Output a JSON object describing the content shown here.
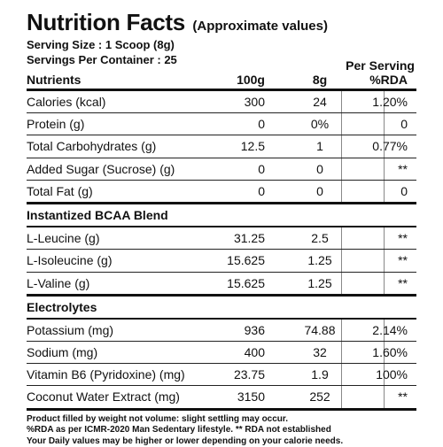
{
  "header": {
    "title": "Nutrition Facts",
    "subtitle": "(Approximate values)",
    "serving_size": "Serving Size : 1 Scoop (8g)",
    "servings_per_container": "Servings Per Container : 25"
  },
  "columns": {
    "nutrients": "Nutrients",
    "per_100g": "100g",
    "per_8g": "8g",
    "rda": "%RDA",
    "per_serving": "Per Serving"
  },
  "rows": [
    {
      "name": "Calories (kcal)",
      "per_100g": "300",
      "per_8g": "24",
      "rda": "1.20%"
    },
    {
      "name": "Protein (g)",
      "per_100g": "0",
      "per_8g": "0%",
      "rda": "0"
    },
    {
      "name": "Total Carbohydrates (g)",
      "per_100g": "12.5",
      "per_8g": "1",
      "rda": "0.77%"
    },
    {
      "name": "Added Sugar (Sucrose) (g)",
      "per_100g": "0",
      "per_8g": "0",
      "rda": "**"
    },
    {
      "name": "Total Fat (g)",
      "per_100g": "0",
      "per_8g": "0",
      "rda": "0"
    }
  ],
  "bcaa": {
    "heading": "Instantized BCAA Blend",
    "rows": [
      {
        "name": "L-Leucine (g)",
        "per_100g": "31.25",
        "per_8g": "2.5",
        "rda": "**"
      },
      {
        "name": "L-Isoleucine (g)",
        "per_100g": "15.625",
        "per_8g": "1.25",
        "rda": "**"
      },
      {
        "name": "L-Valine (g)",
        "per_100g": "15.625",
        "per_8g": "1.25",
        "rda": "**"
      }
    ]
  },
  "electrolytes": {
    "heading": "Electrolytes",
    "rows": [
      {
        "name": "Potassium (mg)",
        "per_100g": "936",
        "per_8g": "74.88",
        "rda": "2.14%"
      },
      {
        "name": "Sodium (mg)",
        "per_100g": "400",
        "per_8g": "32",
        "rda": "1.60%"
      },
      {
        "name": "Vitamin B6 (Pyridoxine) (mg)",
        "per_100g": "23.75",
        "per_8g": "1.9",
        "rda": "100%"
      },
      {
        "name": "Coconut Water Extract (mg)",
        "per_100g": "3150",
        "per_8g": "252",
        "rda": "**"
      }
    ]
  },
  "footnotes": [
    "Product filled by weight not volume: slight settling may occur.",
    "%RDA as per ICMR-2020 Man Sedentary lifestyle. ** RDA not established",
    "Your Daily values may be higher or lower depending on your calorie needs."
  ]
}
